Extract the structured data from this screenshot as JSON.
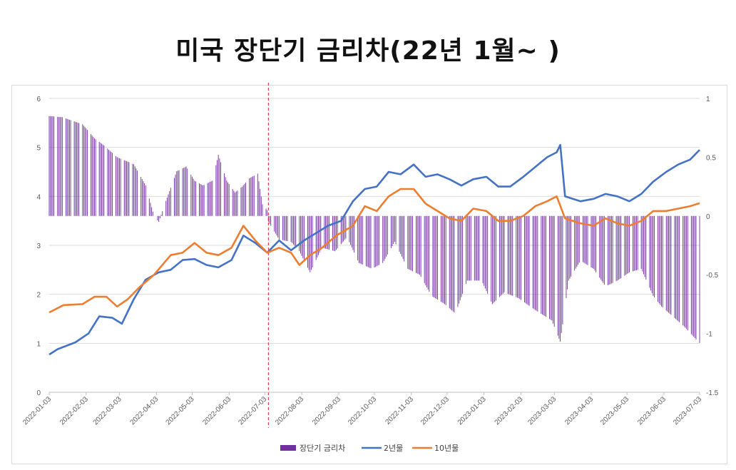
{
  "title": "미국 장단기 금리차(22년 1월~ )",
  "colors": {
    "spread": "#7030a0",
    "y2": "#4472c4",
    "y10": "#ed7d31",
    "marker": "#e02020",
    "grid": "#d9d9d9"
  },
  "chart_data": {
    "type": "line",
    "title": "미국 장단기 금리차(22년 1월~ )",
    "x_tick_labels": [
      "2022-01-03",
      "2022-02-03",
      "2022-03-03",
      "2022-04-03",
      "2022-05-03",
      "2022-06-03",
      "2022-07-03",
      "2022-08-03",
      "2022-09-03",
      "2022-10-03",
      "2022-11-03",
      "2022-12-03",
      "2023-01-03",
      "2023-02-03",
      "2023-03-03",
      "2023-04-03",
      "2023-05-03",
      "2023-06-03",
      "2023-07-03"
    ],
    "y_left": {
      "min": 0,
      "max": 6,
      "ticks": [
        "0",
        "1",
        "2",
        "3",
        "4",
        "5",
        "6"
      ]
    },
    "y_right": {
      "min": -1.5,
      "max": 1,
      "ticks": [
        "-1.5",
        "-1",
        "-0.5",
        "0",
        "0.5",
        "1"
      ]
    },
    "vertical_marker_date": "2022-07-06",
    "grid": "horizontal",
    "legend_position": "bottom",
    "series": [
      {
        "name": "장단기 금리차",
        "type": "bar",
        "axis": "right",
        "points": [
          [
            "2022-01-03",
            0.85
          ],
          [
            "2022-01-14",
            0.84
          ],
          [
            "2022-01-31",
            0.78
          ],
          [
            "2022-02-10",
            0.66
          ],
          [
            "2022-02-18",
            0.6
          ],
          [
            "2022-03-01",
            0.5
          ],
          [
            "2022-03-15",
            0.44
          ],
          [
            "2022-03-25",
            0.26
          ],
          [
            "2022-04-01",
            0.0
          ],
          [
            "2022-04-05",
            -0.05
          ],
          [
            "2022-04-10",
            0.1
          ],
          [
            "2022-04-20",
            0.38
          ],
          [
            "2022-04-28",
            0.42
          ],
          [
            "2022-05-05",
            0.3
          ],
          [
            "2022-05-12",
            0.26
          ],
          [
            "2022-05-20",
            0.3
          ],
          [
            "2022-05-25",
            0.52
          ],
          [
            "2022-06-01",
            0.3
          ],
          [
            "2022-06-08",
            0.2
          ],
          [
            "2022-06-14",
            0.25
          ],
          [
            "2022-06-20",
            0.32
          ],
          [
            "2022-06-27",
            0.36
          ],
          [
            "2022-07-01",
            0.1
          ],
          [
            "2022-07-05",
            0.05
          ],
          [
            "2022-07-06",
            -0.05
          ],
          [
            "2022-07-15",
            -0.2
          ],
          [
            "2022-07-25",
            -0.22
          ],
          [
            "2022-08-01",
            -0.3
          ],
          [
            "2022-08-10",
            -0.48
          ],
          [
            "2022-08-20",
            -0.27
          ],
          [
            "2022-08-31",
            -0.3
          ],
          [
            "2022-09-10",
            -0.18
          ],
          [
            "2022-09-20",
            -0.4
          ],
          [
            "2022-10-01",
            -0.45
          ],
          [
            "2022-10-10",
            -0.4
          ],
          [
            "2022-10-20",
            -0.22
          ],
          [
            "2022-10-31",
            -0.45
          ],
          [
            "2022-11-10",
            -0.5
          ],
          [
            "2022-11-20",
            -0.68
          ],
          [
            "2022-12-01",
            -0.75
          ],
          [
            "2022-12-10",
            -0.83
          ],
          [
            "2022-12-20",
            -0.55
          ],
          [
            "2023-01-01",
            -0.55
          ],
          [
            "2023-01-10",
            -0.75
          ],
          [
            "2023-01-20",
            -0.65
          ],
          [
            "2023-02-01",
            -0.7
          ],
          [
            "2023-02-15",
            -0.8
          ],
          [
            "2023-03-01",
            -0.89
          ],
          [
            "2023-03-08",
            -1.07
          ],
          [
            "2023-03-15",
            -0.55
          ],
          [
            "2023-03-25",
            -0.38
          ],
          [
            "2023-04-05",
            -0.45
          ],
          [
            "2023-04-15",
            -0.6
          ],
          [
            "2023-04-25",
            -0.55
          ],
          [
            "2023-05-05",
            -0.48
          ],
          [
            "2023-05-15",
            -0.45
          ],
          [
            "2023-05-25",
            -0.68
          ],
          [
            "2023-06-01",
            -0.77
          ],
          [
            "2023-06-10",
            -0.85
          ],
          [
            "2023-06-20",
            -0.94
          ],
          [
            "2023-06-30",
            -1.05
          ],
          [
            "2023-07-03",
            -1.08
          ]
        ]
      },
      {
        "name": "2년물",
        "type": "line",
        "axis": "left",
        "points": [
          [
            "2022-01-03",
            0.77
          ],
          [
            "2022-01-10",
            0.88
          ],
          [
            "2022-01-25",
            1.02
          ],
          [
            "2022-02-05",
            1.2
          ],
          [
            "2022-02-14",
            1.55
          ],
          [
            "2022-02-25",
            1.52
          ],
          [
            "2022-03-05",
            1.4
          ],
          [
            "2022-03-15",
            1.9
          ],
          [
            "2022-03-25",
            2.3
          ],
          [
            "2022-04-05",
            2.45
          ],
          [
            "2022-04-15",
            2.5
          ],
          [
            "2022-04-25",
            2.7
          ],
          [
            "2022-05-05",
            2.72
          ],
          [
            "2022-05-15",
            2.6
          ],
          [
            "2022-05-25",
            2.55
          ],
          [
            "2022-06-05",
            2.7
          ],
          [
            "2022-06-15",
            3.2
          ],
          [
            "2022-06-25",
            3.05
          ],
          [
            "2022-07-05",
            2.85
          ],
          [
            "2022-07-15",
            3.1
          ],
          [
            "2022-07-25",
            2.9
          ],
          [
            "2022-08-05",
            3.1
          ],
          [
            "2022-08-15",
            3.25
          ],
          [
            "2022-08-25",
            3.4
          ],
          [
            "2022-09-05",
            3.5
          ],
          [
            "2022-09-15",
            3.9
          ],
          [
            "2022-09-25",
            4.15
          ],
          [
            "2022-10-05",
            4.2
          ],
          [
            "2022-10-15",
            4.5
          ],
          [
            "2022-10-25",
            4.45
          ],
          [
            "2022-11-05",
            4.65
          ],
          [
            "2022-11-15",
            4.4
          ],
          [
            "2022-11-25",
            4.45
          ],
          [
            "2022-12-05",
            4.35
          ],
          [
            "2022-12-15",
            4.22
          ],
          [
            "2022-12-25",
            4.35
          ],
          [
            "2023-01-05",
            4.4
          ],
          [
            "2023-01-15",
            4.2
          ],
          [
            "2023-01-25",
            4.2
          ],
          [
            "2023-02-05",
            4.4
          ],
          [
            "2023-02-15",
            4.6
          ],
          [
            "2023-02-25",
            4.8
          ],
          [
            "2023-03-05",
            4.9
          ],
          [
            "2023-03-08",
            5.05
          ],
          [
            "2023-03-12",
            4.0
          ],
          [
            "2023-03-25",
            3.9
          ],
          [
            "2023-04-05",
            3.95
          ],
          [
            "2023-04-15",
            4.05
          ],
          [
            "2023-04-25",
            4.0
          ],
          [
            "2023-05-05",
            3.9
          ],
          [
            "2023-05-15",
            4.05
          ],
          [
            "2023-05-25",
            4.3
          ],
          [
            "2023-06-05",
            4.5
          ],
          [
            "2023-06-15",
            4.65
          ],
          [
            "2023-06-25",
            4.75
          ],
          [
            "2023-07-03",
            4.95
          ]
        ]
      },
      {
        "name": "10년물",
        "type": "line",
        "axis": "left",
        "points": [
          [
            "2022-01-03",
            1.63
          ],
          [
            "2022-01-15",
            1.78
          ],
          [
            "2022-01-31",
            1.8
          ],
          [
            "2022-02-10",
            1.95
          ],
          [
            "2022-02-20",
            1.95
          ],
          [
            "2022-03-01",
            1.75
          ],
          [
            "2022-03-10",
            1.9
          ],
          [
            "2022-03-20",
            2.15
          ],
          [
            "2022-04-01",
            2.4
          ],
          [
            "2022-04-15",
            2.8
          ],
          [
            "2022-04-25",
            2.85
          ],
          [
            "2022-05-05",
            3.05
          ],
          [
            "2022-05-15",
            2.85
          ],
          [
            "2022-05-25",
            2.8
          ],
          [
            "2022-06-05",
            2.95
          ],
          [
            "2022-06-15",
            3.4
          ],
          [
            "2022-06-25",
            3.1
          ],
          [
            "2022-07-05",
            2.85
          ],
          [
            "2022-07-15",
            2.95
          ],
          [
            "2022-07-25",
            2.85
          ],
          [
            "2022-08-01",
            2.6
          ],
          [
            "2022-08-10",
            2.8
          ],
          [
            "2022-08-20",
            2.95
          ],
          [
            "2022-09-01",
            3.2
          ],
          [
            "2022-09-15",
            3.4
          ],
          [
            "2022-09-25",
            3.8
          ],
          [
            "2022-10-05",
            3.7
          ],
          [
            "2022-10-15",
            4.0
          ],
          [
            "2022-10-25",
            4.15
          ],
          [
            "2022-11-05",
            4.15
          ],
          [
            "2022-11-15",
            3.85
          ],
          [
            "2022-11-25",
            3.7
          ],
          [
            "2022-12-05",
            3.55
          ],
          [
            "2022-12-15",
            3.5
          ],
          [
            "2022-12-25",
            3.75
          ],
          [
            "2023-01-05",
            3.7
          ],
          [
            "2023-01-15",
            3.5
          ],
          [
            "2023-01-25",
            3.5
          ],
          [
            "2023-02-05",
            3.6
          ],
          [
            "2023-02-15",
            3.8
          ],
          [
            "2023-02-25",
            3.9
          ],
          [
            "2023-03-05",
            4.0
          ],
          [
            "2023-03-12",
            3.55
          ],
          [
            "2023-03-25",
            3.45
          ],
          [
            "2023-04-05",
            3.4
          ],
          [
            "2023-04-15",
            3.55
          ],
          [
            "2023-04-25",
            3.45
          ],
          [
            "2023-05-05",
            3.4
          ],
          [
            "2023-05-15",
            3.5
          ],
          [
            "2023-05-25",
            3.7
          ],
          [
            "2023-06-05",
            3.7
          ],
          [
            "2023-06-15",
            3.75
          ],
          [
            "2023-06-25",
            3.8
          ],
          [
            "2023-07-03",
            3.86
          ]
        ]
      }
    ]
  }
}
